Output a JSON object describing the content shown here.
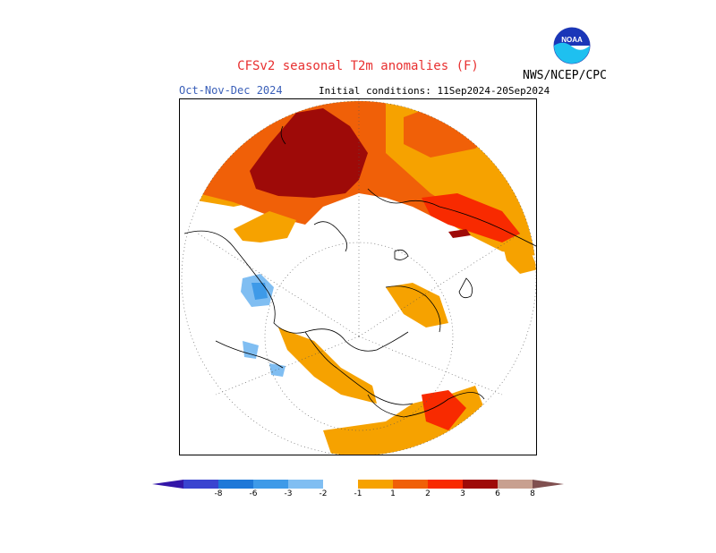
{
  "header": {
    "title": "CFSv2 seasonal T2m anomalies (F)",
    "period": "Oct-Nov-Dec 2024",
    "initial_conditions": "Initial conditions: 11Sep2024-20Sep2024",
    "agency": "NWS/NCEP/CPC",
    "logo_text": "NOAA",
    "logo_icon": "noaa-logo-icon"
  },
  "map": {
    "projection": "north-polar-stereographic",
    "variable": "2m temperature anomaly",
    "units": "F"
  },
  "legend": {
    "labels": [
      "-8",
      "-6",
      "-3",
      "-2",
      "-1",
      "1",
      "2",
      "3",
      "6",
      "8"
    ],
    "colors": [
      "#3316a8",
      "#3a44d0",
      "#1e78d8",
      "#3e9ae8",
      "#80bef2",
      "#ffffff",
      "#f6a200",
      "#f06008",
      "#f82a00",
      "#9e0a08",
      "#c8a090",
      "#805050"
    ]
  }
}
